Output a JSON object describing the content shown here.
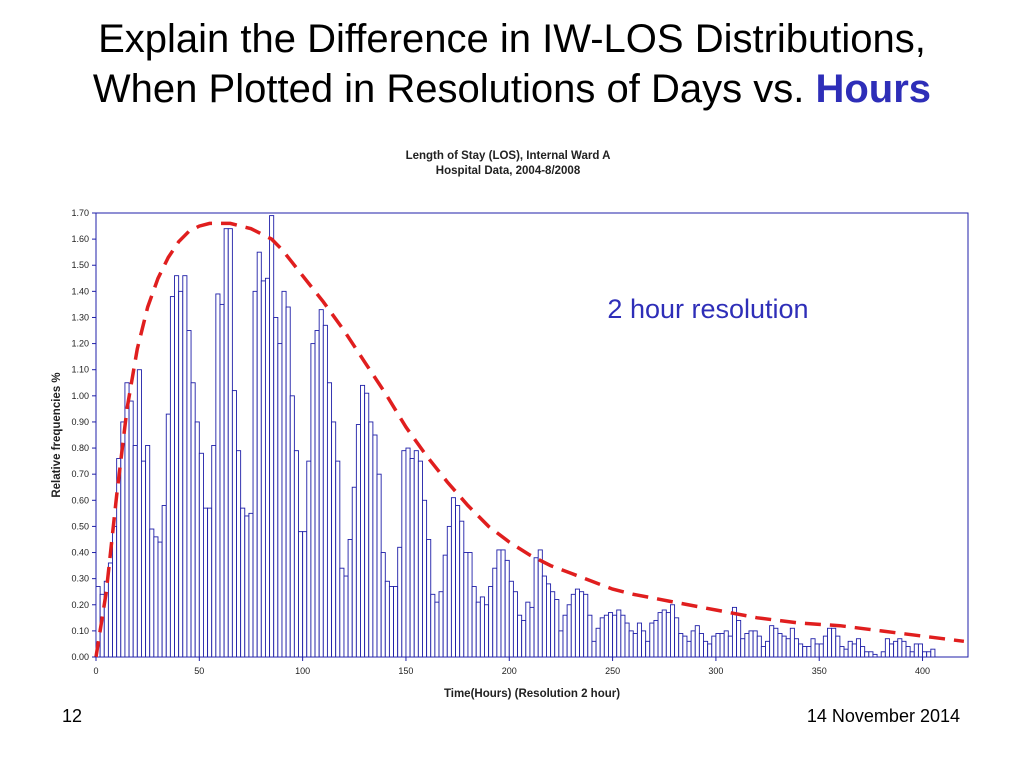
{
  "slide": {
    "title_line1": "Explain the Difference in IW-LOS Distributions,",
    "title_line2": "When Plotted in Resolutions of Days vs. ",
    "title_emphasis": "Hours",
    "page_number": "12",
    "date": "14 November 2014",
    "annotation": "2 hour resolution"
  },
  "chart_data": {
    "type": "bar",
    "title": "Length of Stay (LOS), Internal Ward A",
    "subtitle": "Hospital Data, 2004-8/2008",
    "xlabel": "Time(Hours) (Resolution 2 hour)",
    "ylabel": "Relative frequencies %",
    "xlim": [
      0,
      422
    ],
    "ylim": [
      0,
      1.7
    ],
    "x_ticks": [
      0,
      50,
      100,
      150,
      200,
      250,
      300,
      350,
      400
    ],
    "y_ticks": [
      "0.00",
      "0.10",
      "0.20",
      "0.30",
      "0.40",
      "0.50",
      "0.60",
      "0.70",
      "0.80",
      "0.90",
      "1.00",
      "1.10",
      "1.20",
      "1.30",
      "1.40",
      "1.50",
      "1.60",
      "1.70"
    ],
    "bin_width": 2,
    "grid": false,
    "values": [
      0.27,
      0.24,
      0.29,
      0.36,
      0.5,
      0.76,
      0.9,
      1.05,
      0.98,
      0.81,
      1.1,
      0.75,
      0.81,
      0.49,
      0.46,
      0.44,
      0.58,
      0.93,
      1.38,
      1.46,
      1.4,
      1.46,
      1.25,
      1.05,
      0.9,
      0.78,
      0.57,
      0.57,
      0.81,
      1.39,
      1.35,
      1.64,
      1.64,
      1.02,
      0.79,
      0.57,
      0.54,
      0.55,
      1.4,
      1.55,
      1.44,
      1.45,
      1.69,
      1.3,
      1.2,
      1.4,
      1.34,
      1.0,
      0.79,
      0.48,
      0.48,
      0.75,
      1.2,
      1.25,
      1.33,
      1.27,
      1.05,
      0.9,
      0.75,
      0.34,
      0.31,
      0.45,
      0.65,
      0.89,
      1.04,
      1.01,
      0.9,
      0.85,
      0.7,
      0.4,
      0.29,
      0.27,
      0.27,
      0.42,
      0.79,
      0.8,
      0.76,
      0.79,
      0.75,
      0.6,
      0.45,
      0.24,
      0.21,
      0.25,
      0.39,
      0.5,
      0.61,
      0.58,
      0.52,
      0.4,
      0.4,
      0.27,
      0.21,
      0.23,
      0.2,
      0.27,
      0.34,
      0.41,
      0.41,
      0.37,
      0.29,
      0.25,
      0.16,
      0.14,
      0.21,
      0.19,
      0.38,
      0.41,
      0.31,
      0.28,
      0.25,
      0.22,
      0.1,
      0.16,
      0.2,
      0.24,
      0.26,
      0.25,
      0.24,
      0.16,
      0.06,
      0.11,
      0.15,
      0.16,
      0.17,
      0.16,
      0.18,
      0.16,
      0.13,
      0.1,
      0.09,
      0.13,
      0.1,
      0.06,
      0.13,
      0.14,
      0.17,
      0.18,
      0.17,
      0.2,
      0.15,
      0.09,
      0.08,
      0.06,
      0.1,
      0.12,
      0.09,
      0.06,
      0.05,
      0.08,
      0.09,
      0.09,
      0.1,
      0.08,
      0.19,
      0.14,
      0.07,
      0.09,
      0.1,
      0.1,
      0.08,
      0.04,
      0.06,
      0.12,
      0.11,
      0.09,
      0.08,
      0.07,
      0.11,
      0.07,
      0.05,
      0.04,
      0.04,
      0.07,
      0.05,
      0.05,
      0.08,
      0.11,
      0.11,
      0.08,
      0.04,
      0.03,
      0.06,
      0.05,
      0.07,
      0.04,
      0.02,
      0.02,
      0.01,
      0.0,
      0.02,
      0.07,
      0.05,
      0.06,
      0.07,
      0.06,
      0.04,
      0.02,
      0.05,
      0.05,
      0.02,
      0.02,
      0.03
    ],
    "fit_curve": {
      "style": "dashed",
      "color": "#e01e1e",
      "x": [
        0,
        5,
        10,
        15,
        20,
        25,
        30,
        35,
        40,
        45,
        50,
        55,
        60,
        65,
        70,
        75,
        80,
        85,
        90,
        95,
        100,
        110,
        120,
        130,
        140,
        150,
        160,
        170,
        180,
        190,
        200,
        210,
        220,
        230,
        240,
        250,
        260,
        280,
        300,
        320,
        340,
        360,
        380,
        400,
        420
      ],
      "y": [
        0.0,
        0.25,
        0.62,
        0.95,
        1.18,
        1.34,
        1.45,
        1.53,
        1.59,
        1.63,
        1.65,
        1.66,
        1.66,
        1.66,
        1.65,
        1.64,
        1.62,
        1.6,
        1.56,
        1.51,
        1.46,
        1.36,
        1.25,
        1.13,
        1.01,
        0.88,
        0.77,
        0.67,
        0.58,
        0.5,
        0.44,
        0.39,
        0.35,
        0.32,
        0.29,
        0.26,
        0.24,
        0.21,
        0.18,
        0.15,
        0.13,
        0.12,
        0.1,
        0.08,
        0.06
      ]
    },
    "bar_color": "#1f1fa8"
  }
}
